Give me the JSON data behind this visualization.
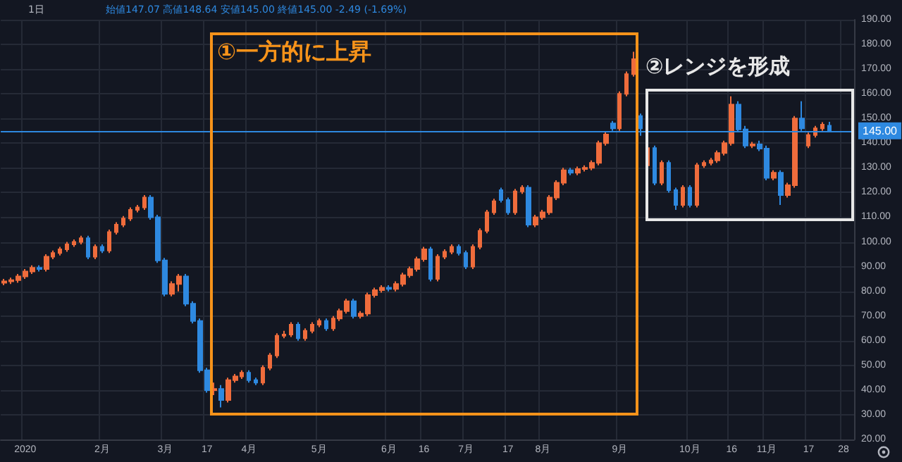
{
  "chart_data": {
    "type": "candlestick",
    "annotations": [
      "1日",
      "始値147.07 高値148.64 安値145.00 終値145.00 -2.49 (-1.69%)",
      "①一方的に上昇",
      "②レンジを形成"
    ],
    "categories": [
      null,
      null,
      null,
      "2020",
      null,
      null,
      null,
      null,
      null,
      null,
      null,
      null,
      null,
      null,
      "2月",
      null,
      null,
      null,
      null,
      null,
      null,
      null,
      null,
      "3月",
      null,
      null,
      null,
      null,
      null,
      "17",
      null,
      null,
      null,
      null,
      null,
      "4月",
      null,
      null,
      null,
      null,
      null,
      null,
      null,
      null,
      null,
      "5月",
      null,
      null,
      null,
      null,
      null,
      null,
      null,
      null,
      null,
      "6月",
      null,
      null,
      null,
      null,
      "16",
      null,
      null,
      null,
      null,
      null,
      "7月",
      null,
      null,
      null,
      null,
      null,
      "17",
      null,
      null,
      null,
      null,
      "8月",
      null,
      null,
      null,
      null,
      null,
      null,
      null,
      null,
      null,
      null,
      "9月",
      null,
      null,
      null,
      null,
      null,
      null,
      null,
      null,
      null,
      "10月",
      null,
      null,
      null,
      null,
      null,
      "16",
      null,
      null,
      null,
      null,
      "11月",
      null,
      null,
      null,
      null,
      null,
      "17",
      null,
      null,
      null,
      null,
      "28",
      null
    ],
    "ohlc": [
      [
        83.5,
        85,
        82.5,
        84
      ],
      [
        84,
        85.5,
        83,
        84.5
      ],
      [
        84.5,
        87,
        83.5,
        86
      ],
      [
        86,
        89,
        85,
        88
      ],
      [
        88,
        90.5,
        87,
        89.5
      ],
      [
        89.5,
        90.5,
        88,
        89
      ],
      [
        89,
        95,
        88,
        94
      ],
      [
        94,
        96.5,
        93,
        95.5
      ],
      [
        95.5,
        98,
        94.5,
        97
      ],
      [
        97,
        100,
        96,
        99
      ],
      [
        99,
        101,
        98,
        100
      ],
      [
        100,
        102.5,
        99,
        101.5
      ],
      [
        101.5,
        102.5,
        93,
        94
      ],
      [
        94,
        99,
        93,
        98
      ],
      [
        98,
        99,
        95.5,
        96.5
      ],
      [
        96.5,
        105,
        95.5,
        104
      ],
      [
        104,
        108,
        103,
        107
      ],
      [
        107,
        110.5,
        106,
        109.5
      ],
      [
        109.5,
        114,
        108.5,
        113
      ],
      [
        113,
        115,
        112,
        114
      ],
      [
        114,
        119,
        113,
        118
      ],
      [
        118,
        119,
        109,
        110
      ],
      [
        110,
        111,
        91.5,
        92.5
      ],
      [
        92.5,
        93.5,
        78,
        79
      ],
      [
        79,
        84,
        78,
        83
      ],
      [
        83,
        87,
        80,
        86
      ],
      [
        86,
        87,
        74,
        75
      ],
      [
        75,
        76,
        67,
        68
      ],
      [
        68,
        69,
        47,
        48
      ],
      [
        48,
        49,
        39,
        40
      ],
      [
        40,
        43,
        38,
        40.5
      ],
      [
        40.5,
        42,
        33,
        36
      ],
      [
        36,
        45,
        35,
        44
      ],
      [
        44,
        46.5,
        43,
        45.5
      ],
      [
        45.5,
        48,
        44.5,
        47
      ],
      [
        47,
        48,
        43,
        44
      ],
      [
        44,
        45,
        42,
        43
      ],
      [
        43,
        50,
        42,
        49
      ],
      [
        49,
        55,
        48,
        54
      ],
      [
        54,
        63,
        53,
        62
      ],
      [
        62,
        64,
        61,
        62.5
      ],
      [
        62.5,
        67.5,
        61.5,
        66.5
      ],
      [
        66.5,
        67.5,
        60,
        61
      ],
      [
        61,
        65,
        60,
        64
      ],
      [
        64,
        67.5,
        63,
        66.5
      ],
      [
        66.5,
        69,
        65.5,
        68
      ],
      [
        68,
        69,
        64,
        65
      ],
      [
        65,
        70,
        64,
        69
      ],
      [
        69,
        73,
        68,
        72
      ],
      [
        72,
        77,
        71,
        76
      ],
      [
        76,
        77,
        69,
        70
      ],
      [
        70,
        72,
        69,
        71
      ],
      [
        71,
        79.5,
        70,
        78.5
      ],
      [
        78.5,
        81.5,
        77.5,
        80.5
      ],
      [
        80.5,
        82.5,
        79.5,
        81.5
      ],
      [
        81.5,
        82.5,
        80,
        81
      ],
      [
        81,
        84,
        80,
        83
      ],
      [
        83,
        87.5,
        82,
        86.5
      ],
      [
        86.5,
        90,
        85.5,
        89
      ],
      [
        89,
        94,
        88,
        93
      ],
      [
        93,
        98,
        92,
        97
      ],
      [
        97,
        98,
        84,
        85
      ],
      [
        85,
        95,
        84,
        94
      ],
      [
        94,
        97,
        93,
        96
      ],
      [
        96,
        99,
        95,
        98
      ],
      [
        98,
        99,
        94.5,
        95.5
      ],
      [
        95.5,
        96.5,
        89,
        90
      ],
      [
        90,
        99,
        89,
        98
      ],
      [
        98,
        105.5,
        97,
        104.5
      ],
      [
        104.5,
        113,
        103.5,
        112
      ],
      [
        112,
        117.5,
        111,
        116.5
      ],
      [
        121,
        122,
        116,
        117
      ],
      [
        117,
        118,
        111,
        112
      ],
      [
        112,
        121.5,
        111,
        120.5
      ],
      [
        120.5,
        123,
        119.5,
        122
      ],
      [
        122,
        123,
        106,
        107
      ],
      [
        107,
        111,
        106,
        110
      ],
      [
        110,
        113,
        109,
        112
      ],
      [
        112,
        119,
        111,
        118
      ],
      [
        118,
        125,
        117,
        124
      ],
      [
        124,
        130,
        123,
        129
      ],
      [
        129,
        130,
        127,
        128
      ],
      [
        128,
        130.5,
        127,
        129.5
      ],
      [
        129.5,
        131,
        128.5,
        130
      ],
      [
        130,
        133,
        129,
        132
      ],
      [
        132,
        141,
        131,
        140
      ],
      [
        140,
        144.5,
        139,
        143.5
      ],
      [
        148,
        149,
        145,
        146
      ],
      [
        146,
        161,
        145,
        160
      ],
      [
        160,
        169,
        159,
        168
      ],
      [
        168,
        177,
        167,
        174
      ],
      [
        151,
        152,
        143,
        146
      ],
      [
        131,
        140,
        130,
        138
      ],
      [
        138,
        139,
        123,
        124
      ],
      [
        124,
        133,
        123,
        132
      ],
      [
        132,
        133,
        120,
        121
      ],
      [
        121,
        122,
        113,
        115
      ],
      [
        115,
        123,
        114,
        122
      ],
      [
        122,
        123,
        114,
        115
      ],
      [
        115,
        132,
        114,
        131
      ],
      [
        131,
        133,
        130,
        132
      ],
      [
        132,
        134,
        131,
        133
      ],
      [
        133,
        137,
        132,
        136
      ],
      [
        136,
        141,
        135,
        140
      ],
      [
        140,
        159,
        139,
        155.6
      ],
      [
        155.6,
        157,
        144.6,
        145.6
      ],
      [
        145.6,
        147,
        138,
        139
      ],
      [
        139,
        140.5,
        138,
        139.5
      ],
      [
        139.5,
        141,
        136.8,
        137.8
      ],
      [
        137.8,
        139,
        125,
        126
      ],
      [
        126,
        129,
        125,
        128
      ],
      [
        128,
        129,
        115,
        119
      ],
      [
        119,
        124,
        118,
        123
      ],
      [
        123,
        151,
        122,
        150
      ],
      [
        150,
        157,
        145,
        146
      ],
      [
        139,
        144.3,
        138,
        143.3
      ],
      [
        143.3,
        147,
        142.3,
        146
      ],
      [
        146,
        148.5,
        145,
        147.5
      ],
      [
        147.07,
        148.64,
        145,
        145
      ],
      null,
      null,
      null
    ],
    "colors": [
      "#ef6c3c",
      "#ef6c3c",
      "#ef6c3c",
      "#ef6c3c",
      "#ef6c3c",
      "#2e89e0",
      "#ef6c3c",
      "#ef6c3c",
      "#ef6c3c",
      "#ef6c3c",
      "#ef6c3c",
      "#ef6c3c",
      "#2e89e0",
      "#ef6c3c",
      "#2e89e0",
      "#ef6c3c",
      "#ef6c3c",
      "#ef6c3c",
      "#ef6c3c",
      "#ef6c3c",
      "#ef6c3c",
      "#2e89e0",
      "#2e89e0",
      "#2e89e0",
      "#ef6c3c",
      "#ef6c3c",
      "#2e89e0",
      "#2e89e0",
      "#2e89e0",
      "#2e89e0",
      "#ef6c3c",
      "#2e89e0",
      "#ef6c3c",
      "#ef6c3c",
      "#ef6c3c",
      "#2e89e0",
      "#2e89e0",
      "#ef6c3c",
      "#ef6c3c",
      "#ef6c3c",
      "#ef6c3c",
      "#ef6c3c",
      "#2e89e0",
      "#ef6c3c",
      "#ef6c3c",
      "#ef6c3c",
      "#2e89e0",
      "#ef6c3c",
      "#ef6c3c",
      "#ef6c3c",
      "#2e89e0",
      "#ef6c3c",
      "#ef6c3c",
      "#ef6c3c",
      "#ef6c3c",
      "#2e89e0",
      "#ef6c3c",
      "#ef6c3c",
      "#ef6c3c",
      "#ef6c3c",
      "#ef6c3c",
      "#2e89e0",
      "#ef6c3c",
      "#ef6c3c",
      "#ef6c3c",
      "#2e89e0",
      "#2e89e0",
      "#ef6c3c",
      "#ef6c3c",
      "#ef6c3c",
      "#ef6c3c",
      "#2e89e0",
      "#2e89e0",
      "#ef6c3c",
      "#ef6c3c",
      "#2e89e0",
      "#ef6c3c",
      "#ef6c3c",
      "#ef6c3c",
      "#ef6c3c",
      "#ef6c3c",
      "#2e89e0",
      "#ef6c3c",
      "#ef6c3c",
      "#ef6c3c",
      "#ef6c3c",
      "#ef6c3c",
      "#2e89e0",
      "#ef6c3c",
      "#ef6c3c",
      "#ef6c3c",
      "#2e89e0",
      "#ef6c3c",
      "#2e89e0",
      "#ef6c3c",
      "#2e89e0",
      "#2e89e0",
      "#ef6c3c",
      "#2e89e0",
      "#ef6c3c",
      "#ef6c3c",
      "#ef6c3c",
      "#ef6c3c",
      "#ef6c3c",
      "#ef6c3c",
      "#2e89e0",
      "#2e89e0",
      "#ef6c3c",
      "#2e89e0",
      "#2e89e0",
      "#ef6c3c",
      "#2e89e0",
      "#ef6c3c",
      "#ef6c3c",
      "#2e89e0",
      "#ef6c3c",
      "#ef6c3c",
      "#ef6c3c",
      "#2e89e0",
      null,
      null,
      null
    ],
    "ylim": [
      20,
      190
    ],
    "yticks": [
      {
        "value": 20,
        "label": "20.00"
      },
      {
        "value": 30,
        "label": "30.00"
      },
      {
        "value": 40,
        "label": "40.00"
      },
      {
        "value": 50,
        "label": "50.00"
      },
      {
        "value": 60,
        "label": "60.00"
      },
      {
        "value": 70,
        "label": "70.00"
      },
      {
        "value": 80,
        "label": "80.00"
      },
      {
        "value": 90,
        "label": "90.00"
      },
      {
        "value": 100,
        "label": "100.00"
      },
      {
        "value": 110,
        "label": "110.00"
      },
      {
        "value": 120,
        "label": "120.00"
      },
      {
        "value": 130,
        "label": "130.00"
      },
      {
        "value": 140,
        "label": "140.00"
      },
      {
        "value": 150,
        "label": "150.00"
      },
      {
        "value": 160,
        "label": "160.00"
      },
      {
        "value": 170,
        "label": "170.00"
      },
      {
        "value": 180,
        "label": "180.00"
      },
      {
        "value": 190,
        "label": "190.00"
      }
    ],
    "ref_lines": [
      {
        "axis": "y",
        "value": 145,
        "label": "145.00",
        "color": "#2e89e0"
      }
    ],
    "grid": true
  }
}
